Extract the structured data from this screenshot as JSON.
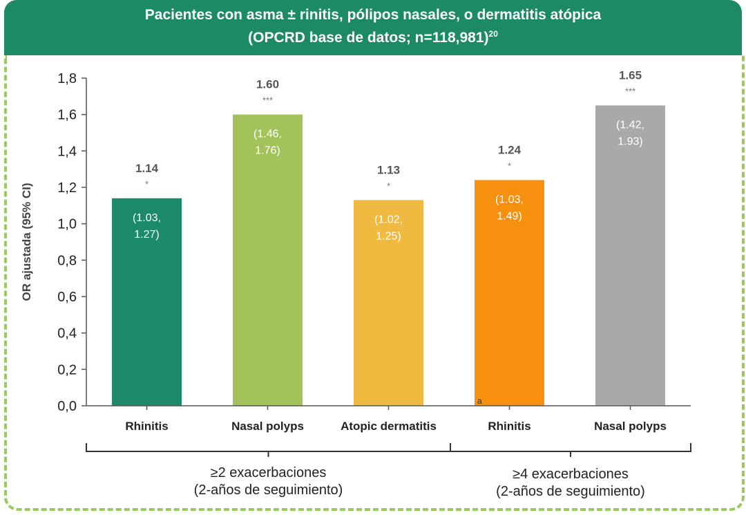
{
  "header": {
    "title_line1": "Pacientes con asma ± rinitis, pólipos nasales, o dermatitis atópica",
    "title_line2": "(OPCRD base de datos; n=118,981)",
    "title_sup": "20"
  },
  "colors": {
    "header_bg": "#1d8a66",
    "dashed_border": "#9cc95b"
  },
  "chart_data": {
    "type": "bar",
    "ylabel": "OR ajustada (95% CI)",
    "ylim": [
      0,
      1.8
    ],
    "yticks": [
      "0,0",
      "0,2",
      "0,4",
      "0,6",
      "0,8",
      "1,0",
      "1,2",
      "1,4",
      "1,6",
      "1,8"
    ],
    "categories": [
      "Rhinitis",
      "Nasal polyps",
      "Atopic dermatitis",
      "Rhinitis",
      "Nasal polyps"
    ],
    "values": [
      1.14,
      1.6,
      1.13,
      1.24,
      1.65
    ],
    "value_labels": [
      "1.14",
      "1.60",
      "1.13",
      "1.24",
      "1.65"
    ],
    "significance": [
      "*",
      "***",
      "*",
      "*",
      "***"
    ],
    "ci_line1": [
      "(1.03,",
      "(1.46,",
      "(1.02,",
      "(1.03,",
      "(1.42,"
    ],
    "ci_line2": [
      "1.27)",
      "1.76)",
      "1.25)",
      "1.49)",
      "1.93)"
    ],
    "colors": [
      "#1a8a68",
      "#a3c25a",
      "#f0b93f",
      "#f7900f",
      "#a9a9a9"
    ],
    "ci_text_colors": [
      "#ffffff",
      "#ffffff",
      "#ffffff",
      "#ffffff",
      "#ffffff"
    ],
    "footnote_mark": "a",
    "groups": [
      {
        "line1": "≥2 exacerbaciones",
        "line2": "(2-años de seguimiento)"
      },
      {
        "line1": "≥4 exacerbaciones",
        "line2": "(2-años de seguimiento)"
      }
    ],
    "grid": false
  }
}
